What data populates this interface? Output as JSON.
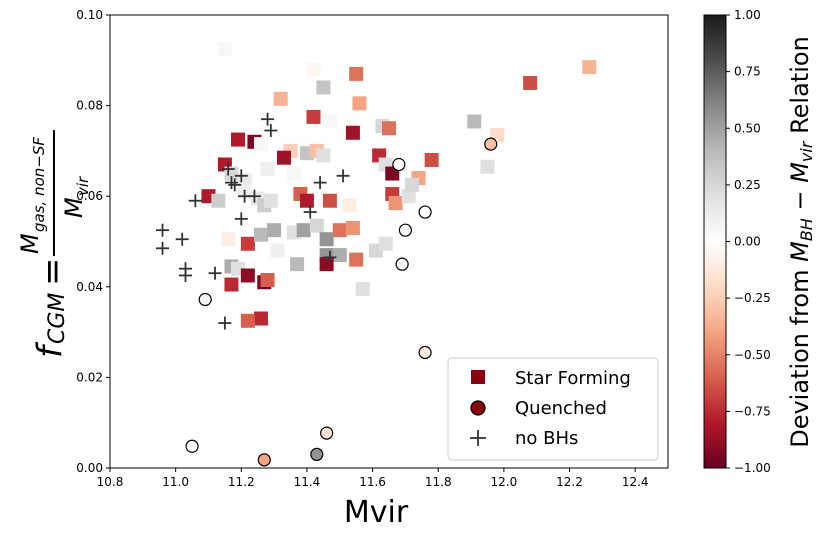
{
  "chart_data": {
    "type": "scatter",
    "xlabel": "Mvir",
    "ylabel": {
      "f": "f",
      "f_sub": "CGM",
      "eq": "=",
      "num": "M",
      "num_sub": "gas, non−SF",
      "den": "M",
      "den_sub": "vir"
    },
    "xlim": [
      10.8,
      12.5
    ],
    "ylim": [
      0.0,
      0.1
    ],
    "xticks": [
      10.8,
      11.0,
      11.2,
      11.4,
      11.6,
      11.8,
      12.0,
      12.2,
      12.4
    ],
    "xtick_labels": [
      "10.8",
      "11.0",
      "11.2",
      "11.4",
      "11.6",
      "11.8",
      "12.0",
      "12.2",
      "12.4"
    ],
    "yticks": [
      0.0,
      0.02,
      0.04,
      0.06,
      0.08,
      0.1
    ],
    "ytick_labels": [
      "0.00",
      "0.02",
      "0.04",
      "0.06",
      "0.08",
      "0.10"
    ],
    "colorbar": {
      "label_parts": [
        "Deviation from ",
        "M",
        "BH",
        " − ",
        "M",
        "vir",
        " Relation"
      ],
      "range": [
        -1.0,
        1.0
      ],
      "ticks": [
        1.0,
        0.75,
        0.5,
        0.25,
        0.0,
        -0.25,
        -0.5,
        -0.75,
        -1.0
      ],
      "tick_labels": [
        "1.00",
        "0.75",
        "0.50",
        "0.25",
        "0.00",
        "−0.25",
        "−0.50",
        "−0.75",
        "−1.00"
      ],
      "colors": [
        "#67001f",
        "#b2182b",
        "#d6604d",
        "#f4a582",
        "#fddbc7",
        "#ffffff",
        "#e0e0e0",
        "#bababa",
        "#878787",
        "#4d4d4d",
        "#1a1a1a"
      ]
    },
    "legend": {
      "placement": "lower-right",
      "entries": [
        {
          "label": "Star Forming",
          "marker": "square",
          "color": "#8b0010"
        },
        {
          "label": "Quenched",
          "marker": "circle",
          "color": "#8b0010"
        },
        {
          "label": "no BHs",
          "marker": "plus",
          "color": "#333333"
        }
      ]
    },
    "series": [
      {
        "name": "Star Forming",
        "marker": "square",
        "points": [
          {
            "x": 11.15,
            "y": 0.0925,
            "c": 0.05
          },
          {
            "x": 11.42,
            "y": 0.088,
            "c": -0.05
          },
          {
            "x": 11.55,
            "y": 0.087,
            "c": -0.55
          },
          {
            "x": 11.45,
            "y": 0.084,
            "c": 0.35
          },
          {
            "x": 11.32,
            "y": 0.0815,
            "c": -0.35
          },
          {
            "x": 11.56,
            "y": 0.0805,
            "c": -0.4
          },
          {
            "x": 11.42,
            "y": 0.0775,
            "c": -0.7
          },
          {
            "x": 11.47,
            "y": 0.0765,
            "c": 0.05
          },
          {
            "x": 11.63,
            "y": 0.0755,
            "c": 0.25
          },
          {
            "x": 11.65,
            "y": 0.075,
            "c": -0.55
          },
          {
            "x": 11.54,
            "y": 0.074,
            "c": -0.85
          },
          {
            "x": 11.19,
            "y": 0.0725,
            "c": -0.8
          },
          {
            "x": 11.24,
            "y": 0.072,
            "c": -0.95
          },
          {
            "x": 11.26,
            "y": 0.0715,
            "c": 0.05
          },
          {
            "x": 11.35,
            "y": 0.07,
            "c": -0.25
          },
          {
            "x": 11.4,
            "y": 0.0695,
            "c": 0.35
          },
          {
            "x": 11.43,
            "y": 0.07,
            "c": -0.3
          },
          {
            "x": 11.45,
            "y": 0.069,
            "c": 0.2
          },
          {
            "x": 11.33,
            "y": 0.0685,
            "c": -0.85
          },
          {
            "x": 11.62,
            "y": 0.069,
            "c": -0.75
          },
          {
            "x": 11.64,
            "y": 0.067,
            "c": 0.2
          },
          {
            "x": 11.66,
            "y": 0.065,
            "c": -0.95
          },
          {
            "x": 11.78,
            "y": 0.068,
            "c": -0.65
          },
          {
            "x": 11.74,
            "y": 0.064,
            "c": -0.4
          },
          {
            "x": 11.15,
            "y": 0.067,
            "c": -0.8
          },
          {
            "x": 11.17,
            "y": 0.065,
            "c": 0.25
          },
          {
            "x": 11.21,
            "y": 0.0635,
            "c": 0.15
          },
          {
            "x": 11.28,
            "y": 0.066,
            "c": 0.1
          },
          {
            "x": 11.36,
            "y": 0.065,
            "c": 0.05
          },
          {
            "x": 11.1,
            "y": 0.06,
            "c": -0.8
          },
          {
            "x": 11.13,
            "y": 0.059,
            "c": 0.3
          },
          {
            "x": 11.21,
            "y": 0.061,
            "c": 0.1
          },
          {
            "x": 11.25,
            "y": 0.0595,
            "c": 0.15
          },
          {
            "x": 11.27,
            "y": 0.058,
            "c": 0.3
          },
          {
            "x": 11.29,
            "y": 0.059,
            "c": 0.2
          },
          {
            "x": 11.38,
            "y": 0.0605,
            "c": -0.6
          },
          {
            "x": 11.4,
            "y": 0.059,
            "c": -0.8
          },
          {
            "x": 11.47,
            "y": 0.059,
            "c": -0.65
          },
          {
            "x": 11.53,
            "y": 0.058,
            "c": -0.1
          },
          {
            "x": 11.66,
            "y": 0.0605,
            "c": -0.7
          },
          {
            "x": 11.67,
            "y": 0.0585,
            "c": -0.45
          },
          {
            "x": 11.71,
            "y": 0.06,
            "c": 0.2
          },
          {
            "x": 11.72,
            "y": 0.0625,
            "c": 0.25
          },
          {
            "x": 11.16,
            "y": 0.0505,
            "c": -0.1
          },
          {
            "x": 11.22,
            "y": 0.0495,
            "c": -0.7
          },
          {
            "x": 11.26,
            "y": 0.0515,
            "c": 0.4
          },
          {
            "x": 11.3,
            "y": 0.0525,
            "c": 0.45
          },
          {
            "x": 11.36,
            "y": 0.052,
            "c": 0.2
          },
          {
            "x": 11.39,
            "y": 0.0525,
            "c": 0.5
          },
          {
            "x": 11.43,
            "y": 0.0535,
            "c": 0.25
          },
          {
            "x": 11.46,
            "y": 0.0505,
            "c": 0.55
          },
          {
            "x": 11.5,
            "y": 0.0525,
            "c": -0.55
          },
          {
            "x": 11.54,
            "y": 0.053,
            "c": -0.45
          },
          {
            "x": 11.61,
            "y": 0.048,
            "c": 0.25
          },
          {
            "x": 11.64,
            "y": 0.0495,
            "c": 0.2
          },
          {
            "x": 11.46,
            "y": 0.047,
            "c": 0.55
          },
          {
            "x": 11.5,
            "y": 0.047,
            "c": 0.45
          },
          {
            "x": 11.46,
            "y": 0.045,
            "c": -0.9
          },
          {
            "x": 11.55,
            "y": 0.046,
            "c": -0.55
          },
          {
            "x": 11.37,
            "y": 0.045,
            "c": 0.4
          },
          {
            "x": 11.17,
            "y": 0.0445,
            "c": 0.45
          },
          {
            "x": 11.19,
            "y": 0.044,
            "c": 0.2
          },
          {
            "x": 11.22,
            "y": 0.0425,
            "c": -0.9
          },
          {
            "x": 11.17,
            "y": 0.0405,
            "c": -0.75
          },
          {
            "x": 11.27,
            "y": 0.041,
            "c": -0.95
          },
          {
            "x": 11.28,
            "y": 0.0415,
            "c": -0.6
          },
          {
            "x": 11.57,
            "y": 0.0395,
            "c": 0.2
          },
          {
            "x": 11.31,
            "y": 0.048,
            "c": 0.1
          },
          {
            "x": 11.26,
            "y": 0.033,
            "c": -0.75
          },
          {
            "x": 11.22,
            "y": 0.0325,
            "c": -0.6
          },
          {
            "x": 11.91,
            "y": 0.0765,
            "c": 0.4
          },
          {
            "x": 11.98,
            "y": 0.0735,
            "c": -0.2
          },
          {
            "x": 11.95,
            "y": 0.0665,
            "c": 0.2
          },
          {
            "x": 11.96,
            "y": 0.071,
            "c": 0.0
          },
          {
            "x": 11.98,
            "y": 0.0835,
            "c": 0.0
          },
          {
            "x": 12.08,
            "y": 0.085,
            "c": -0.65
          },
          {
            "x": 12.26,
            "y": 0.0885,
            "c": -0.35
          }
        ]
      },
      {
        "name": "Quenched",
        "marker": "circle",
        "points": [
          {
            "x": 11.68,
            "y": 0.067,
            "c": 0.0
          },
          {
            "x": 11.96,
            "y": 0.0715,
            "c": -0.3
          },
          {
            "x": 11.76,
            "y": 0.0565,
            "c": 0.0
          },
          {
            "x": 11.7,
            "y": 0.0525,
            "c": 0.0
          },
          {
            "x": 11.69,
            "y": 0.045,
            "c": 0.0
          },
          {
            "x": 11.09,
            "y": 0.0372,
            "c": 0.05
          },
          {
            "x": 11.76,
            "y": 0.0255,
            "c": -0.1
          },
          {
            "x": 11.05,
            "y": 0.0048,
            "c": 0.0
          },
          {
            "x": 11.27,
            "y": 0.0018,
            "c": -0.4
          },
          {
            "x": 11.43,
            "y": 0.003,
            "c": 0.55
          },
          {
            "x": 11.46,
            "y": 0.0077,
            "c": -0.15
          }
        ]
      },
      {
        "name": "no BHs",
        "marker": "plus",
        "points": [
          {
            "x": 11.28,
            "y": 0.077
          },
          {
            "x": 11.29,
            "y": 0.0745
          },
          {
            "x": 11.16,
            "y": 0.066
          },
          {
            "x": 11.18,
            "y": 0.0625
          },
          {
            "x": 11.2,
            "y": 0.0645
          },
          {
            "x": 11.17,
            "y": 0.063
          },
          {
            "x": 11.21,
            "y": 0.06
          },
          {
            "x": 11.24,
            "y": 0.06
          },
          {
            "x": 11.06,
            "y": 0.059
          },
          {
            "x": 11.44,
            "y": 0.063
          },
          {
            "x": 11.51,
            "y": 0.0645
          },
          {
            "x": 11.41,
            "y": 0.0565
          },
          {
            "x": 11.2,
            "y": 0.055
          },
          {
            "x": 10.96,
            "y": 0.0525
          },
          {
            "x": 11.02,
            "y": 0.0505
          },
          {
            "x": 10.96,
            "y": 0.0485
          },
          {
            "x": 11.03,
            "y": 0.044
          },
          {
            "x": 11.03,
            "y": 0.0425
          },
          {
            "x": 11.12,
            "y": 0.043
          },
          {
            "x": 11.47,
            "y": 0.0465
          },
          {
            "x": 11.15,
            "y": 0.032
          }
        ]
      }
    ]
  }
}
